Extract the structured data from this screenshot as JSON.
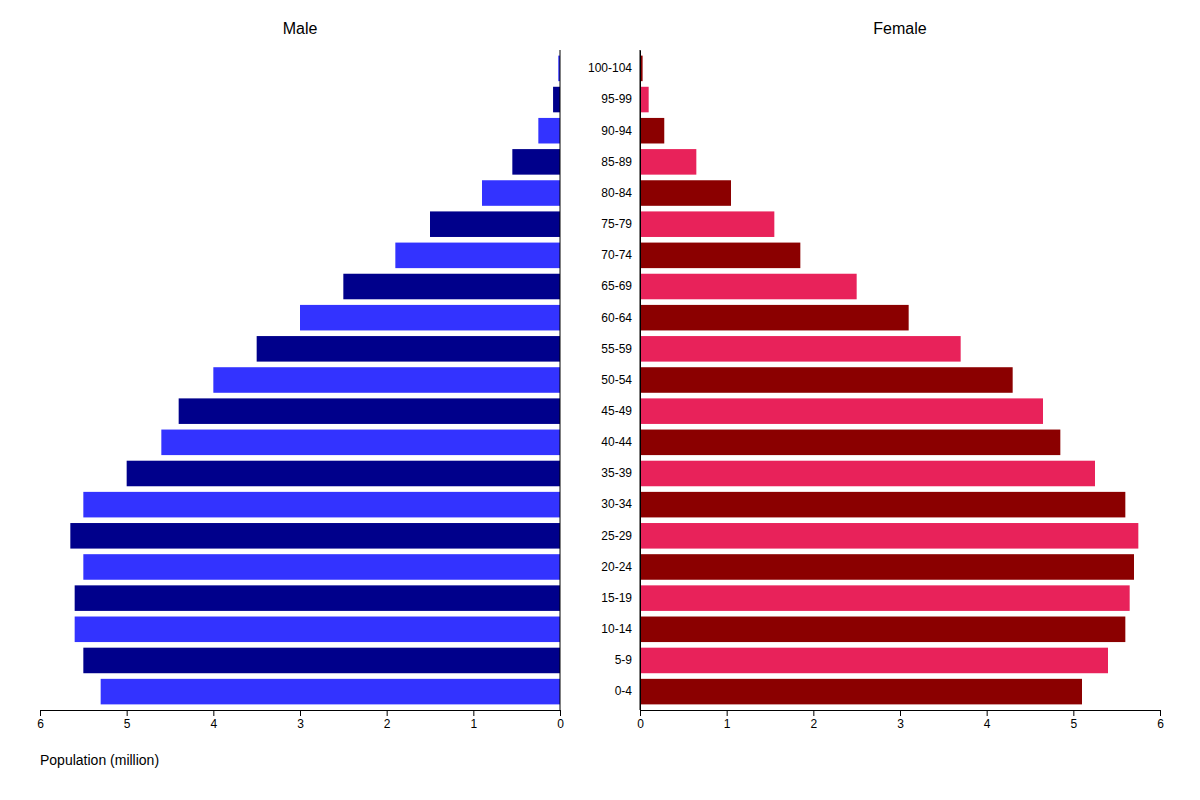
{
  "chart_data": [
    {
      "type": "bar",
      "orientation": "horizontal",
      "title": "Male",
      "xlabel": "Population (million)",
      "categories": [
        "0-4",
        "5-9",
        "10-14",
        "15-19",
        "20-24",
        "25-29",
        "30-34",
        "35-39",
        "40-44",
        "45-49",
        "50-54",
        "55-59",
        "60-64",
        "65-69",
        "70-74",
        "75-79",
        "80-84",
        "85-89",
        "90-94",
        "95-99",
        "100-104"
      ],
      "values": [
        5.3,
        5.5,
        5.6,
        5.6,
        5.5,
        5.65,
        5.5,
        5.0,
        4.6,
        4.4,
        4.0,
        3.5,
        3.0,
        2.5,
        1.9,
        1.5,
        0.9,
        0.55,
        0.25,
        0.08,
        0.02
      ],
      "colors": [
        "#3333ff",
        "#00008b",
        "#3333ff",
        "#00008b",
        "#3333ff",
        "#00008b",
        "#3333ff",
        "#00008b",
        "#3333ff",
        "#00008b",
        "#3333ff",
        "#00008b",
        "#3333ff",
        "#00008b",
        "#3333ff",
        "#00008b",
        "#3333ff",
        "#00008b",
        "#3333ff",
        "#00008b",
        "#3333ff"
      ],
      "xlim": [
        6,
        0
      ],
      "xticks": [
        0,
        1,
        2,
        3,
        4,
        5,
        6
      ],
      "grid": false,
      "tick_labels": "x"
    },
    {
      "type": "bar",
      "orientation": "horizontal",
      "title": "Female",
      "categories": [
        "0-4",
        "5-9",
        "10-14",
        "15-19",
        "20-24",
        "25-29",
        "30-34",
        "35-39",
        "40-44",
        "45-49",
        "50-54",
        "55-59",
        "60-64",
        "65-69",
        "70-74",
        "75-79",
        "80-84",
        "85-89",
        "90-94",
        "95-99",
        "100-104"
      ],
      "values": [
        5.1,
        5.4,
        5.6,
        5.65,
        5.7,
        5.75,
        5.6,
        5.25,
        4.85,
        4.65,
        4.3,
        3.7,
        3.1,
        2.5,
        1.85,
        1.55,
        1.05,
        0.65,
        0.28,
        0.1,
        0.03
      ],
      "colors": [
        "#8b0000",
        "#e8225a",
        "#8b0000",
        "#e8225a",
        "#8b0000",
        "#e8225a",
        "#8b0000",
        "#e8225a",
        "#8b0000",
        "#e8225a",
        "#8b0000",
        "#e8225a",
        "#8b0000",
        "#e8225a",
        "#8b0000",
        "#e8225a",
        "#8b0000",
        "#e8225a",
        "#8b0000",
        "#e8225a",
        "#8b0000"
      ],
      "xlim": [
        0,
        6
      ],
      "xticks": [
        0,
        1,
        2,
        3,
        4,
        5,
        6
      ],
      "grid": false
    }
  ]
}
